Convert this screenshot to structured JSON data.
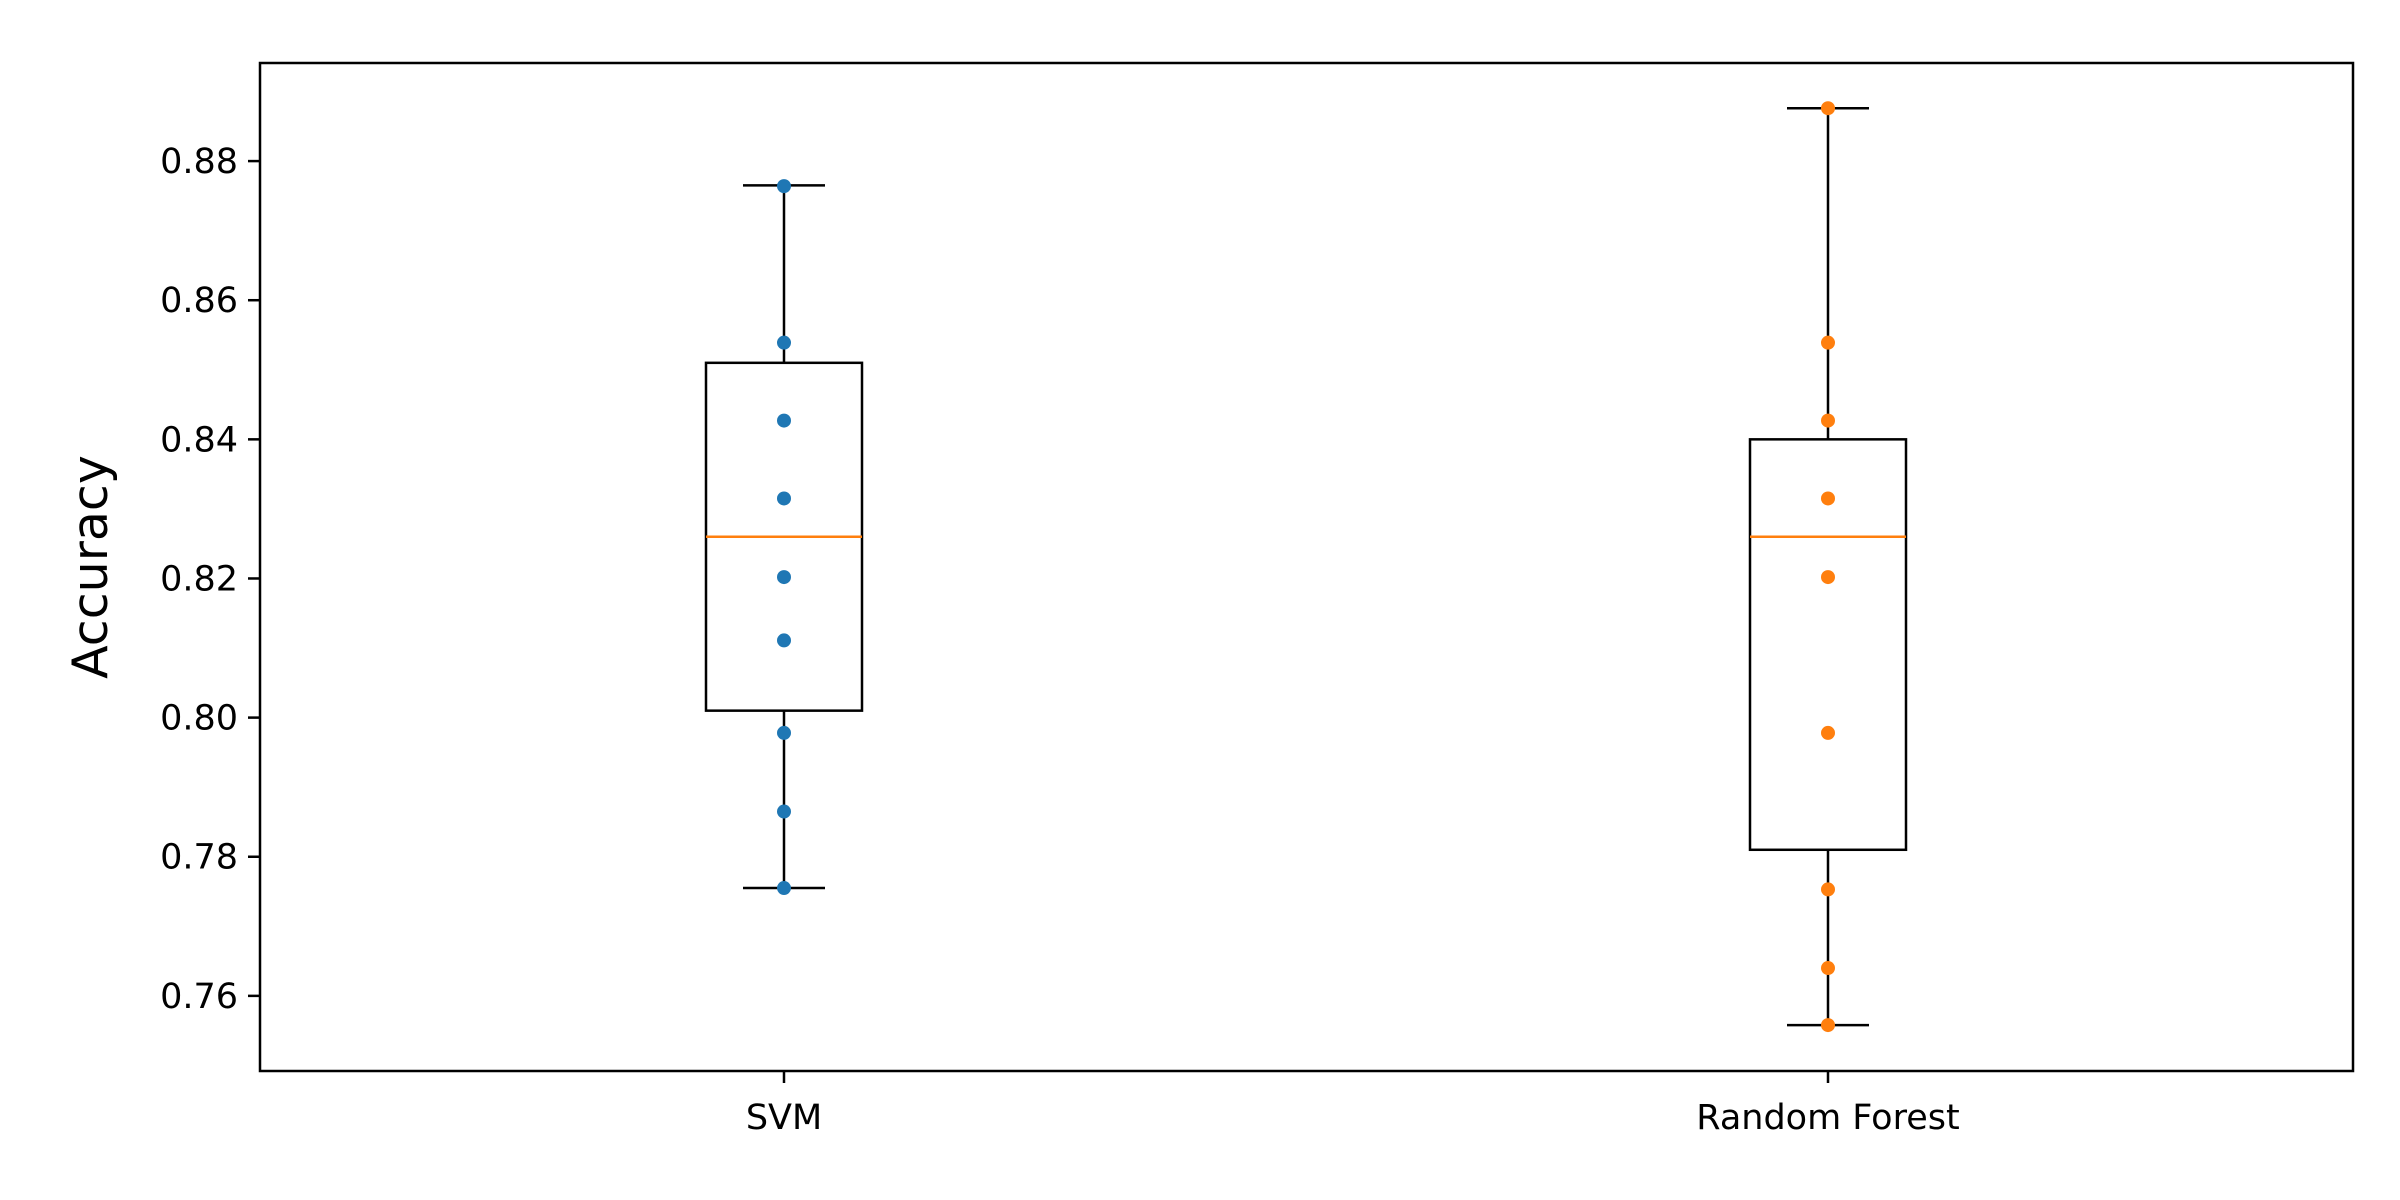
{
  "chart_data": {
    "type": "box",
    "title": "",
    "xlabel": "",
    "ylabel": "Accuracy",
    "ylim": [
      0.7492,
      0.8941
    ],
    "yticks": [
      0.76,
      0.78,
      0.8,
      0.82,
      0.84,
      0.86,
      0.88
    ],
    "ytick_labels": [
      "0.76",
      "0.78",
      "0.80",
      "0.82",
      "0.84",
      "0.86",
      "0.88"
    ],
    "categories": [
      "SVM",
      "Random Forest"
    ],
    "grid": false,
    "legend": "none",
    "series": [
      {
        "color": "#1f77b4",
        "median_color": "#ff7f0e",
        "whisker_low": 0.7755,
        "q1": 0.801,
        "median": 0.826,
        "q3": 0.851,
        "whisker_high": 0.8765,
        "points": [
          0.7755,
          0.7865,
          0.7978,
          0.8111,
          0.8202,
          0.8315,
          0.8427,
          0.8539,
          0.8764
        ]
      },
      {
        "color": "#ff7f0e",
        "median_color": "#ff7f0e",
        "whisker_low": 0.7558,
        "q1": 0.781,
        "median": 0.826,
        "q3": 0.84,
        "whisker_high": 0.8876,
        "points": [
          0.7558,
          0.764,
          0.7753,
          0.7978,
          0.8202,
          0.8315,
          0.8427,
          0.8539,
          0.8876
        ]
      }
    ]
  }
}
